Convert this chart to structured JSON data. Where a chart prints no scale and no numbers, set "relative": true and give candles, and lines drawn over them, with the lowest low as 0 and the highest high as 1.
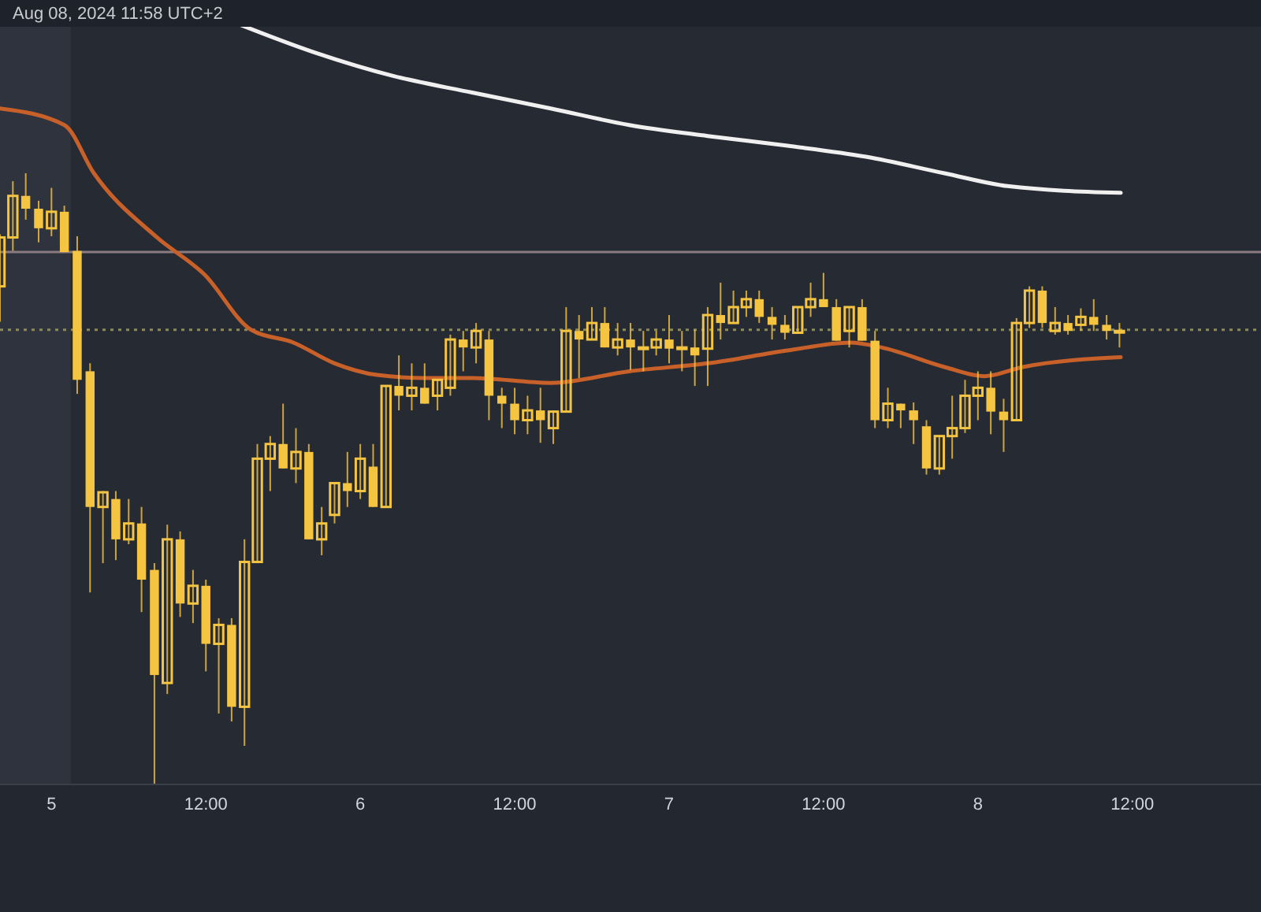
{
  "chart_data": {
    "type": "candlestick",
    "relative": true,
    "annotations": [
      "Aug 08, 2024 11:58 UTC+2"
    ],
    "xlim": [
      "2024-08-04T20:00",
      "2024-08-08T22:00"
    ],
    "xticks": [
      {
        "value": "2024-08-05T00:00",
        "label": "5"
      },
      {
        "value": "2024-08-05T12:00",
        "label": "12:00"
      },
      {
        "value": "2024-08-06T00:00",
        "label": "6"
      },
      {
        "value": "2024-08-06T12:00",
        "label": "12:00"
      },
      {
        "value": "2024-08-07T00:00",
        "label": "7"
      },
      {
        "value": "2024-08-07T12:00",
        "label": "12:00"
      },
      {
        "value": "2024-08-08T00:00",
        "label": "8"
      },
      {
        "value": "2024-08-08T12:00",
        "label": "12:00"
      }
    ],
    "bands": [
      {
        "axis": "x",
        "from": "2024-08-04T20:00",
        "to": "2024-08-05T01:30",
        "color": "#2f333e"
      }
    ],
    "ref_lines": [
      {
        "axis": "y",
        "value": 0.871,
        "label": null,
        "color": "#8a7b80",
        "line_style": "solid"
      },
      {
        "axis": "y",
        "value": 0.744,
        "label": null,
        "color": "#8c8a5a",
        "line_style": "dotted"
      }
    ],
    "series": [
      {
        "color": "#f5c542",
        "x": [
          "2024-08-04T20:00",
          "2024-08-04T21:00",
          "2024-08-04T22:00",
          "2024-08-04T23:00",
          "2024-08-05T00:00",
          "2024-08-05T01:00",
          "2024-08-05T02:00",
          "2024-08-05T03:00",
          "2024-08-05T04:00",
          "2024-08-05T05:00",
          "2024-08-05T06:00",
          "2024-08-05T07:00",
          "2024-08-05T08:00",
          "2024-08-05T09:00",
          "2024-08-05T10:00",
          "2024-08-05T11:00",
          "2024-08-05T12:00",
          "2024-08-05T13:00",
          "2024-08-05T14:00",
          "2024-08-05T15:00",
          "2024-08-05T16:00",
          "2024-08-05T17:00",
          "2024-08-05T18:00",
          "2024-08-05T19:00",
          "2024-08-05T20:00",
          "2024-08-05T21:00",
          "2024-08-05T22:00",
          "2024-08-05T23:00",
          "2024-08-06T00:00",
          "2024-08-06T01:00",
          "2024-08-06T02:00",
          "2024-08-06T03:00",
          "2024-08-06T04:00",
          "2024-08-06T05:00",
          "2024-08-06T06:00",
          "2024-08-06T07:00",
          "2024-08-06T08:00",
          "2024-08-06T09:00",
          "2024-08-06T10:00",
          "2024-08-06T11:00",
          "2024-08-06T12:00",
          "2024-08-06T13:00",
          "2024-08-06T14:00",
          "2024-08-06T15:00",
          "2024-08-06T16:00",
          "2024-08-06T17:00",
          "2024-08-06T18:00",
          "2024-08-06T19:00",
          "2024-08-06T20:00",
          "2024-08-06T21:00",
          "2024-08-06T22:00",
          "2024-08-06T23:00",
          "2024-08-07T00:00",
          "2024-08-07T01:00",
          "2024-08-07T02:00",
          "2024-08-07T03:00",
          "2024-08-07T04:00",
          "2024-08-07T05:00",
          "2024-08-07T06:00",
          "2024-08-07T07:00",
          "2024-08-07T08:00",
          "2024-08-07T09:00",
          "2024-08-07T10:00",
          "2024-08-07T11:00",
          "2024-08-07T12:00",
          "2024-08-07T13:00",
          "2024-08-07T14:00",
          "2024-08-07T15:00",
          "2024-08-07T16:00",
          "2024-08-07T17:00",
          "2024-08-07T18:00",
          "2024-08-07T19:00",
          "2024-08-07T20:00",
          "2024-08-07T21:00",
          "2024-08-07T22:00",
          "2024-08-07T23:00",
          "2024-08-08T00:00",
          "2024-08-08T01:00",
          "2024-08-08T02:00",
          "2024-08-08T03:00",
          "2024-08-08T04:00",
          "2024-08-08T05:00",
          "2024-08-08T06:00",
          "2024-08-08T07:00",
          "2024-08-08T08:00",
          "2024-08-08T09:00",
          "2024-08-08T10:00",
          "2024-08-08T11:00"
        ],
        "ohlc": [
          [
            0.815,
            0.9,
            0.757,
            0.895
          ],
          [
            0.895,
            0.987,
            0.873,
            0.963
          ],
          [
            0.963,
            1.0,
            0.924,
            0.942
          ],
          [
            0.942,
            0.955,
            0.887,
            0.91
          ],
          [
            0.91,
            0.976,
            0.897,
            0.937
          ],
          [
            0.937,
            0.947,
            0.871,
            0.871
          ],
          [
            0.873,
            0.897,
            0.639,
            0.662
          ],
          [
            0.676,
            0.689,
            0.314,
            0.454
          ],
          [
            0.454,
            0.48,
            0.362,
            0.478
          ],
          [
            0.467,
            0.48,
            0.367,
            0.401
          ],
          [
            0.401,
            0.467,
            0.393,
            0.427
          ],
          [
            0.427,
            0.454,
            0.282,
            0.335
          ],
          [
            0.351,
            0.362,
            0,
            0.179
          ],
          [
            0.166,
            0.425,
            0.148,
            0.401
          ],
          [
            0.401,
            0.414,
            0.274,
            0.296
          ],
          [
            0.296,
            0.351,
            0.264,
            0.325
          ],
          [
            0.325,
            0.335,
            0.185,
            0.23
          ],
          [
            0.23,
            0.272,
            0.116,
            0.261
          ],
          [
            0.261,
            0.272,
            0.103,
            0.127
          ],
          [
            0.127,
            0.401,
            0.063,
            0.364
          ],
          [
            0.364,
            0.557,
            0.362,
            0.533
          ],
          [
            0.533,
            0.57,
            0.48,
            0.557
          ],
          [
            0.557,
            0.623,
            0.517,
            0.517
          ],
          [
            0.517,
            0.583,
            0.493,
            0.544
          ],
          [
            0.544,
            0.557,
            0.401,
            0.401
          ],
          [
            0.401,
            0.454,
            0.375,
            0.427
          ],
          [
            0.441,
            0.493,
            0.427,
            0.493
          ],
          [
            0.493,
            0.544,
            0.454,
            0.48
          ],
          [
            0.48,
            0.557,
            0.467,
            0.533
          ],
          [
            0.52,
            0.557,
            0.454,
            0.454
          ],
          [
            0.454,
            0.652,
            0.454,
            0.652
          ],
          [
            0.652,
            0.702,
            0.612,
            0.636
          ],
          [
            0.636,
            0.689,
            0.612,
            0.649
          ],
          [
            0.649,
            0.689,
            0.623,
            0.623
          ],
          [
            0.636,
            0.662,
            0.612,
            0.662
          ],
          [
            0.649,
            0.736,
            0.636,
            0.728
          ],
          [
            0.728,
            0.742,
            0.676,
            0.715
          ],
          [
            0.715,
            0.755,
            0.689,
            0.742
          ],
          [
            0.728,
            0.742,
            0.596,
            0.636
          ],
          [
            0.636,
            0.649,
            0.583,
            0.623
          ],
          [
            0.623,
            0.649,
            0.573,
            0.596
          ],
          [
            0.596,
            0.636,
            0.573,
            0.612
          ],
          [
            0.612,
            0.649,
            0.559,
            0.596
          ],
          [
            0.583,
            0.612,
            0.557,
            0.61
          ],
          [
            0.61,
            0.781,
            0.61,
            0.742
          ],
          [
            0.742,
            0.768,
            0.665,
            0.728
          ],
          [
            0.728,
            0.781,
            0.728,
            0.755
          ],
          [
            0.755,
            0.781,
            0.715,
            0.715
          ],
          [
            0.715,
            0.755,
            0.702,
            0.728
          ],
          [
            0.728,
            0.755,
            0.678,
            0.715
          ],
          [
            0.715,
            0.742,
            0.676,
            0.715
          ],
          [
            0.715,
            0.742,
            0.702,
            0.728
          ],
          [
            0.728,
            0.768,
            0.689,
            0.713
          ],
          [
            0.713,
            0.742,
            0.676,
            0.715
          ],
          [
            0.715,
            0.744,
            0.652,
            0.702
          ],
          [
            0.713,
            0.781,
            0.652,
            0.768
          ],
          [
            0.768,
            0.821,
            0.728,
            0.755
          ],
          [
            0.755,
            0.808,
            0.755,
            0.781
          ],
          [
            0.781,
            0.808,
            0.765,
            0.794
          ],
          [
            0.794,
            0.808,
            0.755,
            0.765
          ],
          [
            0.765,
            0.781,
            0.728,
            0.752
          ],
          [
            0.752,
            0.768,
            0.728,
            0.739
          ],
          [
            0.739,
            0.781,
            0.739,
            0.781
          ],
          [
            0.781,
            0.821,
            0.765,
            0.794
          ],
          [
            0.794,
            0.837,
            0.781,
            0.781
          ],
          [
            0.781,
            0.794,
            0.726,
            0.726
          ],
          [
            0.742,
            0.781,
            0.715,
            0.781
          ],
          [
            0.781,
            0.794,
            0.726,
            0.726
          ],
          [
            0.726,
            0.742,
            0.583,
            0.596
          ],
          [
            0.596,
            0.649,
            0.583,
            0.623
          ],
          [
            0.623,
            0.623,
            0.583,
            0.612
          ],
          [
            0.612,
            0.625,
            0.557,
            0.596
          ],
          [
            0.586,
            0.596,
            0.507,
            0.517
          ],
          [
            0.517,
            0.57,
            0.507,
            0.57
          ],
          [
            0.57,
            0.636,
            0.533,
            0.583
          ],
          [
            0.583,
            0.662,
            0.575,
            0.636
          ],
          [
            0.636,
            0.676,
            0.596,
            0.649
          ],
          [
            0.649,
            0.676,
            0.573,
            0.61
          ],
          [
            0.61,
            0.631,
            0.544,
            0.596
          ],
          [
            0.596,
            0.763,
            0.596,
            0.755
          ],
          [
            0.755,
            0.815,
            0.747,
            0.808
          ],
          [
            0.808,
            0.815,
            0.747,
            0.755
          ],
          [
            0.742,
            0.781,
            0.736,
            0.755
          ],
          [
            0.755,
            0.768,
            0.736,
            0.742
          ],
          [
            0.752,
            0.779,
            0.742,
            0.765
          ],
          [
            0.765,
            0.794,
            0.742,
            0.752
          ],
          [
            0.752,
            0.768,
            0.728,
            0.742
          ],
          [
            0.742,
            0.755,
            0.715,
            0.742
          ]
        ]
      },
      {
        "type": "line",
        "color": "#c8602a",
        "x": [
          "2024-08-04T20:00",
          "2024-08-05T01:00",
          "2024-08-05T03:18",
          "2024-08-05T08:12",
          "2024-08-05T11:54",
          "2024-08-05T15:30",
          "2024-08-05T18:48",
          "2024-08-05T22:00",
          "2024-08-06T01:18",
          "2024-08-06T05:00",
          "2024-08-06T08:42",
          "2024-08-06T14:48",
          "2024-08-06T20:54",
          "2024-08-07T03:00",
          "2024-08-07T09:12",
          "2024-08-07T14:06",
          "2024-08-07T16:30",
          "2024-08-07T21:24",
          "2024-08-08T00:30",
          "2024-08-08T03:30",
          "2024-08-08T11:06"
        ],
        "values": [
          1.106,
          1.079,
          1.0,
          0.895,
          0.834,
          0.744,
          0.723,
          0.689,
          0.67,
          0.665,
          0.665,
          0.657,
          0.676,
          0.689,
          0.71,
          0.723,
          0.715,
          0.683,
          0.668,
          0.683,
          0.699
        ]
      },
      {
        "type": "line",
        "color": "#f0f0f0",
        "x": [
          "2024-08-05T14:18",
          "2024-08-05T20:24",
          "2024-08-06T02:36",
          "2024-08-06T08:42",
          "2024-08-06T14:48",
          "2024-08-06T20:54",
          "2024-08-07T03:00",
          "2024-08-07T09:12",
          "2024-08-07T15:18",
          "2024-08-07T21:24",
          "2024-08-08T02:18",
          "2024-08-08T11:06"
        ],
        "values": [
          1.246,
          1.198,
          1.159,
          1.132,
          1.106,
          1.079,
          1.061,
          1.045,
          1.027,
          1.0,
          0.979,
          0.968
        ]
      }
    ]
  }
}
